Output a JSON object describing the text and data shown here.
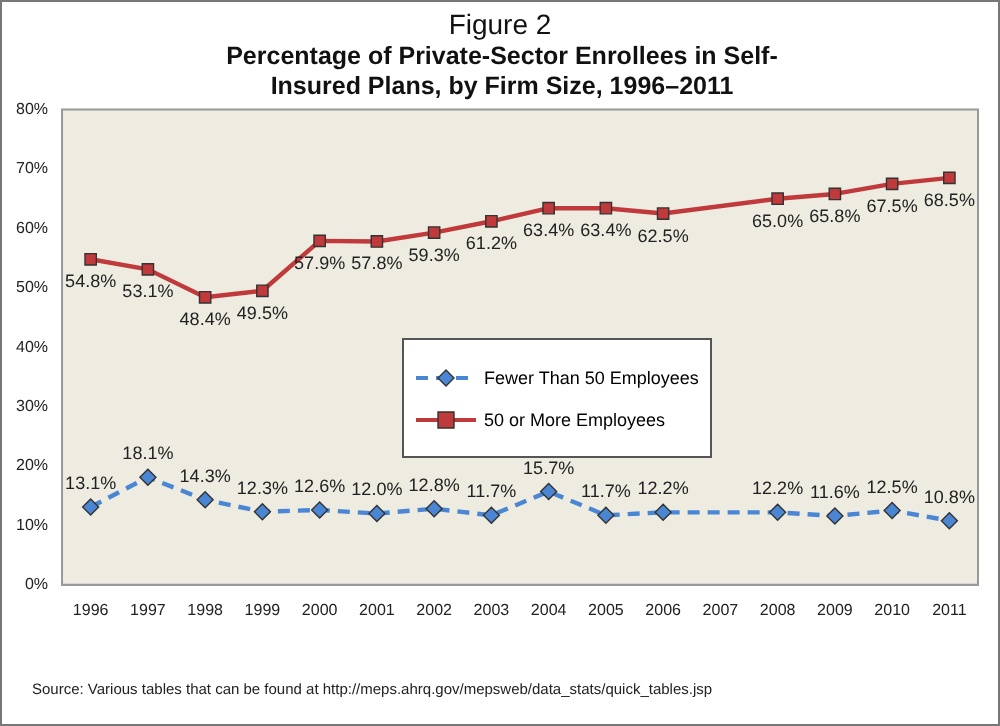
{
  "chart_data": {
    "type": "line",
    "subtitle": "Figure 2",
    "title": "Percentage of Private-Sector Enrollees in Self-Insured Plans, by Firm Size, 1996–2011",
    "categories": [
      "1996",
      "1997",
      "1998",
      "1999",
      "2000",
      "2001",
      "2002",
      "2003",
      "2004",
      "2005",
      "2006",
      "2007",
      "2008",
      "2009",
      "2010",
      "2011"
    ],
    "series": [
      {
        "name": "Fewer Than 50 Employees",
        "color": "#4a86d4",
        "marker": "diamond",
        "line_style": "dashed",
        "values": [
          13.1,
          18.1,
          14.3,
          12.3,
          12.6,
          12.0,
          12.8,
          11.7,
          15.7,
          11.7,
          12.2,
          null,
          12.2,
          11.6,
          12.5,
          10.8
        ],
        "value_labels": [
          "13.1%",
          "18.1%",
          "14.3%",
          "12.3%",
          "12.6%",
          "12.0%",
          "12.8%",
          "11.7%",
          "15.7%",
          "11.7%",
          "12.2%",
          null,
          "12.2%",
          "11.6%",
          "12.5%",
          "10.8%"
        ]
      },
      {
        "name": "50 or More Employees",
        "color": "#c0393b",
        "marker": "square",
        "line_style": "solid",
        "values": [
          54.8,
          53.1,
          48.4,
          49.5,
          57.9,
          57.8,
          59.3,
          61.2,
          63.4,
          63.4,
          62.5,
          null,
          65.0,
          65.8,
          67.5,
          68.5
        ],
        "value_labels": [
          "54.8%",
          "53.1%",
          "48.4%",
          "49.5%",
          "57.9%",
          "57.8%",
          "59.3%",
          "61.2%",
          "63.4%",
          "63.4%",
          "62.5%",
          null,
          "65.0%",
          "65.8%",
          "67.5%",
          "68.5%"
        ]
      }
    ],
    "ylim": [
      0,
      80
    ],
    "yticks": [
      {
        "value": 0,
        "label": "0%"
      },
      {
        "value": 10,
        "label": "10%"
      },
      {
        "value": 20,
        "label": "20%"
      },
      {
        "value": 30,
        "label": "30%"
      },
      {
        "value": 40,
        "label": "40%"
      },
      {
        "value": 50,
        "label": "50%"
      },
      {
        "value": 60,
        "label": "60%"
      },
      {
        "value": 70,
        "label": "70%"
      },
      {
        "value": 80,
        "label": "80%"
      }
    ],
    "grid": false,
    "legend": "center",
    "annotations": [
      "Source: Various tables that can be found at http://meps.ahrq.gov/mepsweb/data_stats/quick_tables.jsp"
    ]
  }
}
